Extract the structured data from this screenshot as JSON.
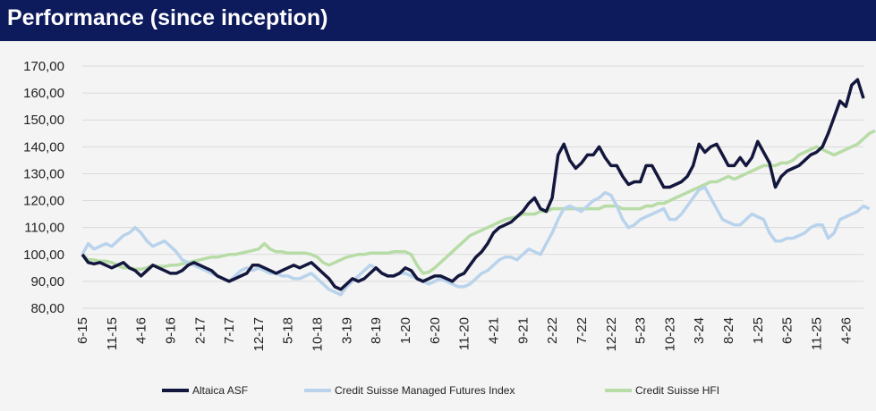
{
  "header": {
    "title": "Performance (since inception)"
  },
  "colors": {
    "header_bg": "#0d1a5c",
    "altaica": "#14173d",
    "cs_mf": "#b9d3ec",
    "cs_hfi": "#b7dca6"
  },
  "chart_data": {
    "type": "line",
    "title": "Performance (since inception)",
    "ylim": [
      80,
      170
    ],
    "y_ticks": [
      "170,00",
      "160,00",
      "150,00",
      "140,00",
      "130,00",
      "120,00",
      "110,00",
      "100,00",
      "90,00",
      "80,00"
    ],
    "x_ticks": [
      "6-15",
      "11-15",
      "4-16",
      "9-16",
      "2-17",
      "7-17",
      "12-17",
      "5-18",
      "10-18",
      "3-19",
      "8-19",
      "1-20",
      "6-20",
      "11-20",
      "4-21",
      "9-21",
      "2-22",
      "7-22",
      "12-22",
      "5-23",
      "10-23",
      "3-24",
      "8-24",
      "1-25",
      "6-25",
      "11-25",
      "4-26"
    ],
    "x_tick_index": [
      0,
      5,
      10,
      15,
      20,
      25,
      30,
      35,
      40,
      45,
      50,
      55,
      60,
      65,
      70,
      75,
      80,
      85,
      90,
      95,
      100,
      105,
      110,
      115,
      120,
      125,
      130
    ],
    "grid": "horizontal",
    "legend_position": "bottom",
    "series": [
      {
        "name": "Altaica ASF",
        "color": "#14173d",
        "values": [
          100,
          97,
          96.5,
          97,
          96,
          95,
          96,
          97,
          95,
          94,
          92,
          94,
          96,
          95,
          94,
          93,
          93,
          94,
          96,
          97,
          96,
          95,
          94,
          92,
          91,
          90,
          91,
          92,
          93,
          96,
          96,
          95,
          94,
          93,
          94,
          95,
          96,
          95,
          96,
          97,
          95,
          93,
          91,
          88,
          87,
          89,
          91,
          90,
          91,
          93,
          95,
          93,
          92,
          92,
          93,
          95,
          94,
          91,
          90,
          91,
          92,
          92,
          91,
          90,
          92,
          93,
          96,
          99,
          101,
          104,
          108,
          110,
          111,
          112,
          114,
          116,
          119,
          121,
          117,
          116,
          121,
          137,
          141,
          135,
          132,
          134,
          137,
          137,
          140,
          136,
          133,
          133,
          129,
          126,
          127,
          127,
          133,
          133,
          129,
          125,
          125,
          126,
          127,
          129,
          133,
          141,
          138,
          140,
          141,
          137,
          133,
          133,
          136,
          133,
          136,
          142,
          138,
          134,
          125,
          129,
          131,
          132,
          133,
          135,
          137,
          138,
          140,
          145,
          151,
          157,
          155,
          163,
          165,
          158
        ]
      },
      {
        "name": "Credit Suisse Managed Futures Index",
        "color": "#b9d3ec",
        "values": [
          100,
          104,
          102,
          103,
          104,
          103,
          105,
          107,
          108,
          110,
          108,
          105,
          103,
          104,
          105,
          103,
          101,
          98,
          97,
          96,
          95,
          94,
          93,
          92,
          91,
          90,
          92,
          94,
          95,
          94,
          95,
          94,
          93,
          93,
          92,
          92,
          91,
          91,
          92,
          93,
          91,
          89,
          87,
          86,
          85,
          88,
          90,
          92,
          94,
          96,
          95,
          93,
          92,
          92,
          93,
          93,
          92,
          91,
          90,
          89,
          90,
          91,
          90,
          89,
          88,
          88,
          89,
          91,
          93,
          94,
          96,
          98,
          99,
          99,
          98,
          100,
          102,
          101,
          100,
          104,
          108,
          113,
          117,
          118,
          117,
          116,
          118,
          120,
          121,
          123,
          122,
          118,
          113,
          110,
          111,
          113,
          114,
          115,
          116,
          117,
          113,
          113,
          115,
          118,
          121,
          124,
          125,
          121,
          117,
          113,
          112,
          111,
          111,
          113,
          115,
          114,
          113,
          108,
          105,
          105,
          106,
          106,
          107,
          108,
          110,
          111,
          111,
          106,
          108,
          113,
          114,
          115,
          116,
          118,
          117
        ]
      },
      {
        "name": "Credit Suisse HFI",
        "color": "#b7dca6",
        "values": [
          100,
          98,
          98,
          97.5,
          97.5,
          97,
          96,
          95,
          95,
          94.5,
          94.5,
          95,
          96,
          95.5,
          95.5,
          96,
          96,
          96.5,
          97,
          97.5,
          98,
          98.5,
          99,
          99,
          99.5,
          100,
          100,
          100.5,
          101,
          101.5,
          102,
          104,
          102,
          101,
          101,
          100.5,
          100.5,
          100.5,
          100.5,
          100,
          99,
          97,
          96,
          97,
          98,
          99,
          99.5,
          100,
          100,
          100.5,
          100.5,
          100.5,
          100.5,
          101,
          101,
          101,
          100,
          96,
          93,
          93.5,
          95,
          97,
          99,
          101,
          103,
          105,
          107,
          108,
          109,
          110,
          111,
          112,
          113,
          113.5,
          114,
          115,
          115,
          115,
          116,
          116,
          117,
          117,
          117,
          117,
          117,
          117,
          117,
          117,
          117,
          118,
          118,
          118,
          117,
          117,
          117,
          117,
          118,
          118,
          119,
          119,
          120,
          121,
          122,
          123,
          124,
          125,
          126,
          127,
          127,
          128,
          129,
          128,
          129,
          130,
          131,
          132,
          133,
          133,
          133,
          134,
          134,
          135,
          137,
          138,
          139,
          140,
          139,
          138,
          137,
          138,
          139,
          140,
          141,
          143,
          145,
          146
        ]
      }
    ]
  }
}
